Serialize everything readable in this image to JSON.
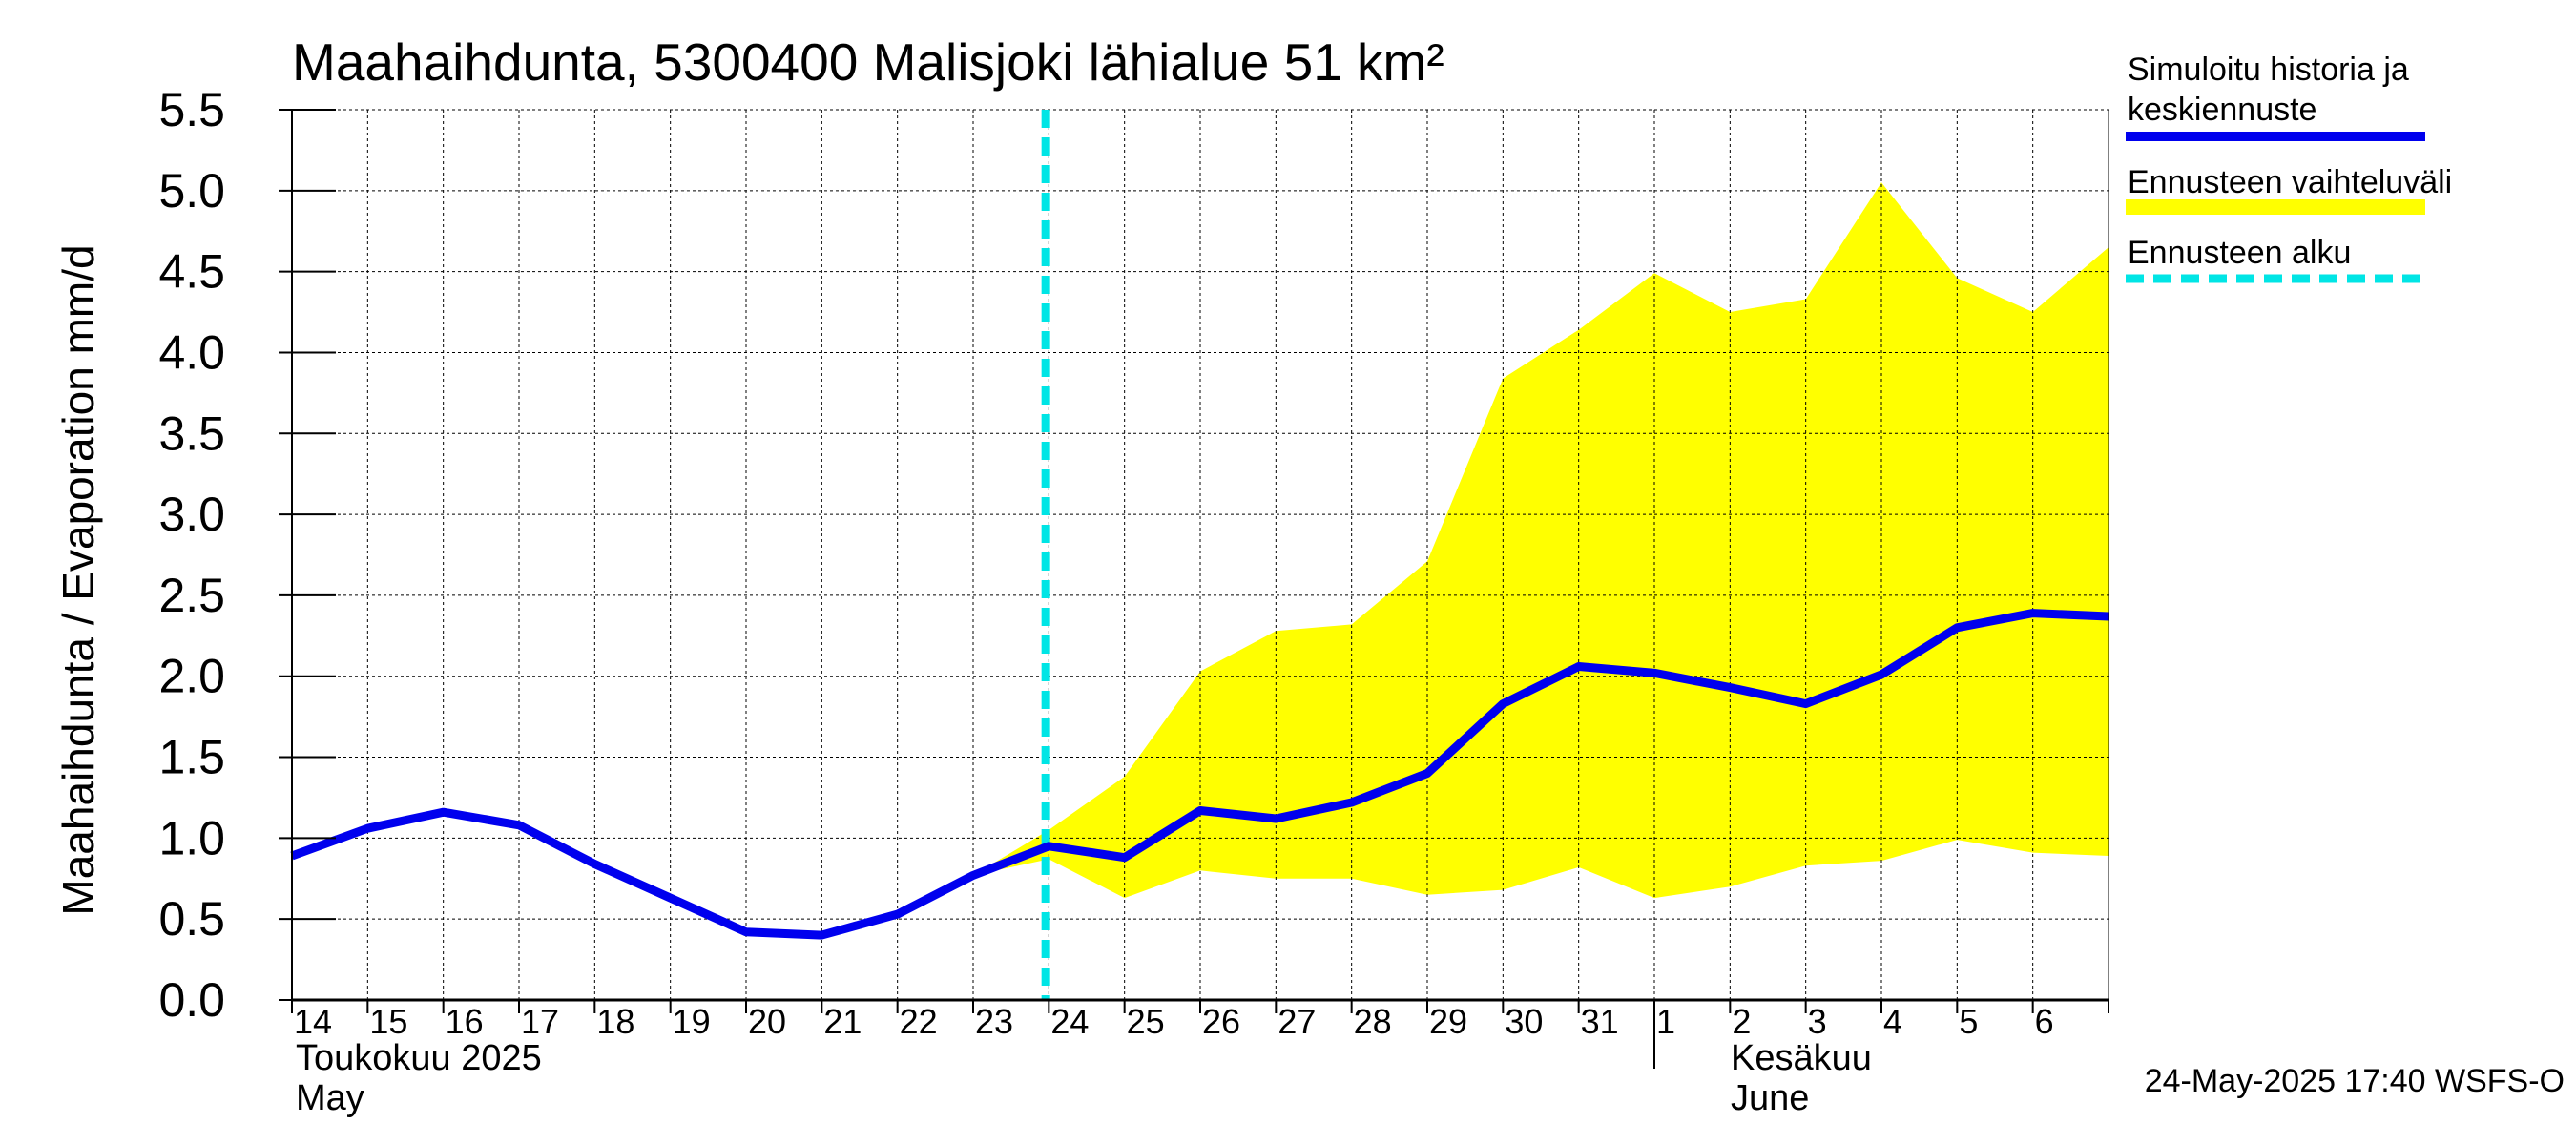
{
  "chart_data": {
    "type": "line",
    "title": "Maahaihdunta, 5300400 Malisjoki lähialue 51 km²",
    "ylabel": "Maahaihdunta / Evaporation   mm/d",
    "ylim": [
      0,
      5.5
    ],
    "yticks": [
      0.0,
      0.5,
      1.0,
      1.5,
      2.0,
      2.5,
      3.0,
      3.5,
      4.0,
      4.5,
      5.0,
      5.5
    ],
    "ytick_labels": [
      "0.0",
      "0.5",
      "1.0",
      "1.5",
      "2.0",
      "2.5",
      "3.0",
      "3.5",
      "4.0",
      "4.5",
      "5.0",
      "5.5"
    ],
    "xlim": [
      "2025-05-14",
      "2025-06-07"
    ],
    "grid": true,
    "x_day_labels": [
      "14",
      "15",
      "16",
      "17",
      "18",
      "19",
      "20",
      "21",
      "22",
      "23",
      "24",
      "25",
      "26",
      "27",
      "28",
      "29",
      "30",
      "31",
      "1",
      "2",
      "3",
      "4",
      "5",
      "6"
    ],
    "month_labels": [
      {
        "fi": "Toukokuu  2025",
        "en": "May"
      },
      {
        "fi": "Kesäkuu",
        "en": "June"
      }
    ],
    "forecast_start": "2025-05-24",
    "series": [
      {
        "name": "Simuloitu historia ja keskiennuste",
        "color": "#0000ee",
        "x": [
          "2025-05-14",
          "2025-05-15",
          "2025-05-16",
          "2025-05-17",
          "2025-05-18",
          "2025-05-19",
          "2025-05-20",
          "2025-05-21",
          "2025-05-22",
          "2025-05-23",
          "2025-05-24",
          "2025-05-25",
          "2025-05-26",
          "2025-05-27",
          "2025-05-28",
          "2025-05-29",
          "2025-05-30",
          "2025-05-31",
          "2025-06-01",
          "2025-06-02",
          "2025-06-03",
          "2025-06-04",
          "2025-06-05",
          "2025-06-06",
          "2025-06-07"
        ],
        "values": [
          0.89,
          1.06,
          1.16,
          1.08,
          0.84,
          0.63,
          0.42,
          0.4,
          0.53,
          0.77,
          0.95,
          0.88,
          1.17,
          1.12,
          1.22,
          1.4,
          1.83,
          2.06,
          2.02,
          1.93,
          1.83,
          2.01,
          2.3,
          2.39,
          2.37
        ]
      },
      {
        "name": "Ennusteen vaihteluväli",
        "color": "#ffff00",
        "x": [
          "2025-05-23",
          "2025-05-24",
          "2025-05-25",
          "2025-05-26",
          "2025-05-27",
          "2025-05-28",
          "2025-05-29",
          "2025-05-30",
          "2025-05-31",
          "2025-06-01",
          "2025-06-02",
          "2025-06-03",
          "2025-06-04",
          "2025-06-05",
          "2025-06-06",
          "2025-06-07"
        ],
        "lower": [
          0.77,
          0.87,
          0.63,
          0.8,
          0.75,
          0.75,
          0.65,
          0.68,
          0.82,
          0.63,
          0.7,
          0.83,
          0.86,
          0.99,
          0.91,
          0.89
        ],
        "upper": [
          0.77,
          1.05,
          1.38,
          2.03,
          2.28,
          2.32,
          2.71,
          3.84,
          4.14,
          4.49,
          4.25,
          4.33,
          5.05,
          4.46,
          4.25,
          4.65
        ]
      }
    ],
    "legend": {
      "placement": "right",
      "entries": [
        {
          "line1": "Simuloitu historia ja",
          "line2": "keskiennuste",
          "color": "#0000ee",
          "style": "solid"
        },
        {
          "line1": "Ennusteen vaihteluväli",
          "line2": "",
          "color": "#ffff00",
          "style": "solid"
        },
        {
          "line1": "Ennusteen alku",
          "line2": "",
          "color": "#00e5e5",
          "style": "dashed"
        }
      ]
    },
    "footer": "24-May-2025 17:40 WSFS-O"
  }
}
